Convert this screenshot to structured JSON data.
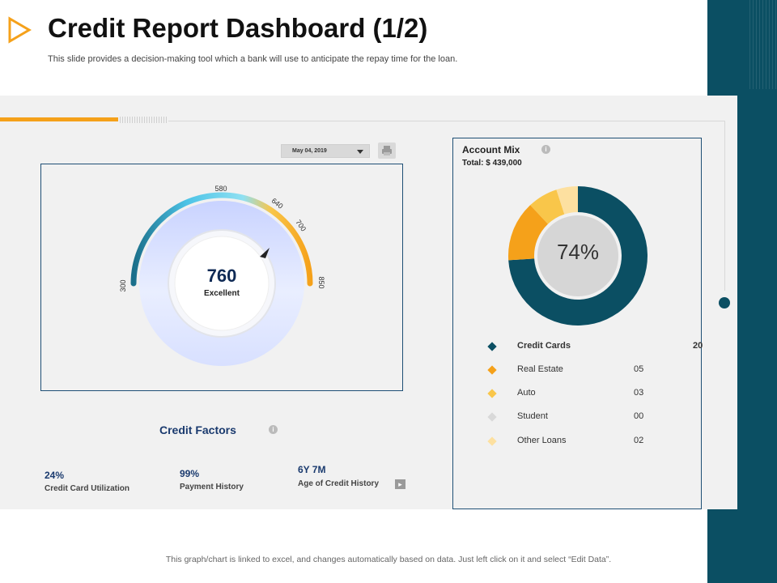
{
  "header": {
    "title": "Credit Report Dashboard (1/2)",
    "subtitle": "This slide provides a decision-making tool which a bank will use to anticipate the repay time for the loan."
  },
  "toolbar": {
    "date_value": "May 04, 2019",
    "print_icon": "printer-icon"
  },
  "gauge": {
    "score": "760",
    "rating": "Excellent",
    "ticks": [
      "300",
      "580",
      "640",
      "700",
      "850"
    ],
    "min": 300,
    "max": 850,
    "pointer_value": 760,
    "colors": {
      "low": "#1b6f8a",
      "mid": "#62d3ef",
      "high": "#f5a11a"
    }
  },
  "credit_factors": {
    "title": "Credit Factors",
    "items": [
      {
        "value": "24%",
        "label": "Credit Card Utilization"
      },
      {
        "value": "99%",
        "label": "Payment History"
      },
      {
        "value": "6Y 7M",
        "label": "Age of Credit History"
      }
    ]
  },
  "account_mix": {
    "title": "Account Mix",
    "total": "Total: $ 439,000",
    "center_label": "74%",
    "legend": [
      {
        "label": "Credit Cards",
        "value": "20",
        "color": "#0b4f63"
      },
      {
        "label": "Real Estate",
        "value": "05",
        "color": "#f5a11a"
      },
      {
        "label": "Auto",
        "value": "03",
        "color": "#f9c64a"
      },
      {
        "label": "Student",
        "value": "00",
        "color": "#d9d9d9"
      },
      {
        "label": "Other Loans",
        "value": "02",
        "color": "#fde0a0"
      }
    ]
  },
  "chart_data": {
    "type": "pie",
    "title": "Account Mix",
    "categories": [
      "Credit Cards",
      "Real Estate",
      "Auto",
      "Student",
      "Other Loans"
    ],
    "values": [
      74,
      14,
      7,
      0,
      5
    ],
    "center_label": "74%"
  },
  "footer": {
    "note": "This graph/chart is linked to excel, and changes automatically based on data. Just left click on it and select “Edit Data”."
  }
}
